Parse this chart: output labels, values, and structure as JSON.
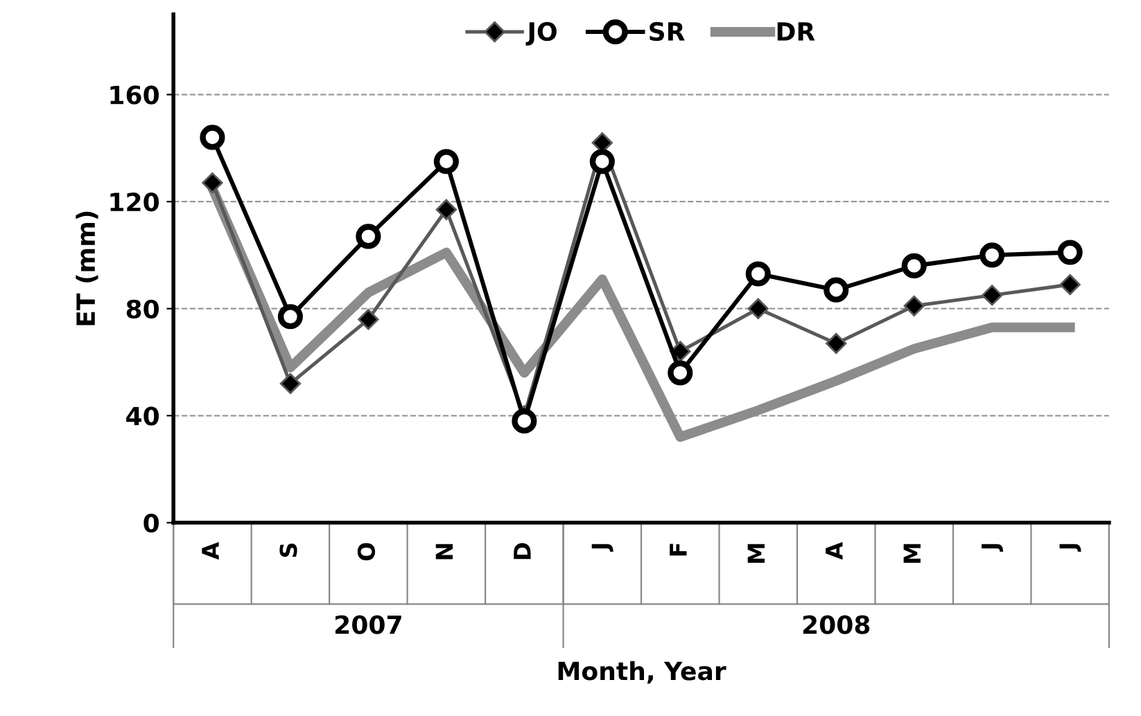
{
  "chart_data": {
    "type": "line",
    "xlabel": "Month, Year",
    "ylabel": "ET (mm)",
    "categories": [
      "A",
      "S",
      "O",
      "N",
      "D",
      "J",
      "F",
      "M",
      "A",
      "M",
      "J",
      "J"
    ],
    "series": [
      {
        "name": "JO",
        "color": "#595959",
        "marker": "diamond",
        "values": [
          127,
          52,
          76,
          117,
          40,
          142,
          64,
          80,
          67,
          81,
          85,
          89
        ]
      },
      {
        "name": "SR",
        "color": "#000000",
        "marker": "circle",
        "values": [
          144,
          77,
          107,
          135,
          38,
          135,
          56,
          93,
          87,
          96,
          100,
          101
        ]
      },
      {
        "name": "DR",
        "color": "#8c8c8c",
        "marker": "none",
        "values": [
          125,
          58,
          86,
          101,
          56,
          91,
          32,
          42,
          53,
          65,
          73,
          73
        ]
      }
    ],
    "ylim": [
      0,
      190
    ],
    "yticks": [
      0,
      40,
      80,
      120,
      160
    ],
    "grid": "y",
    "legend": "top",
    "annotations": [
      "2007",
      "2008"
    ]
  }
}
